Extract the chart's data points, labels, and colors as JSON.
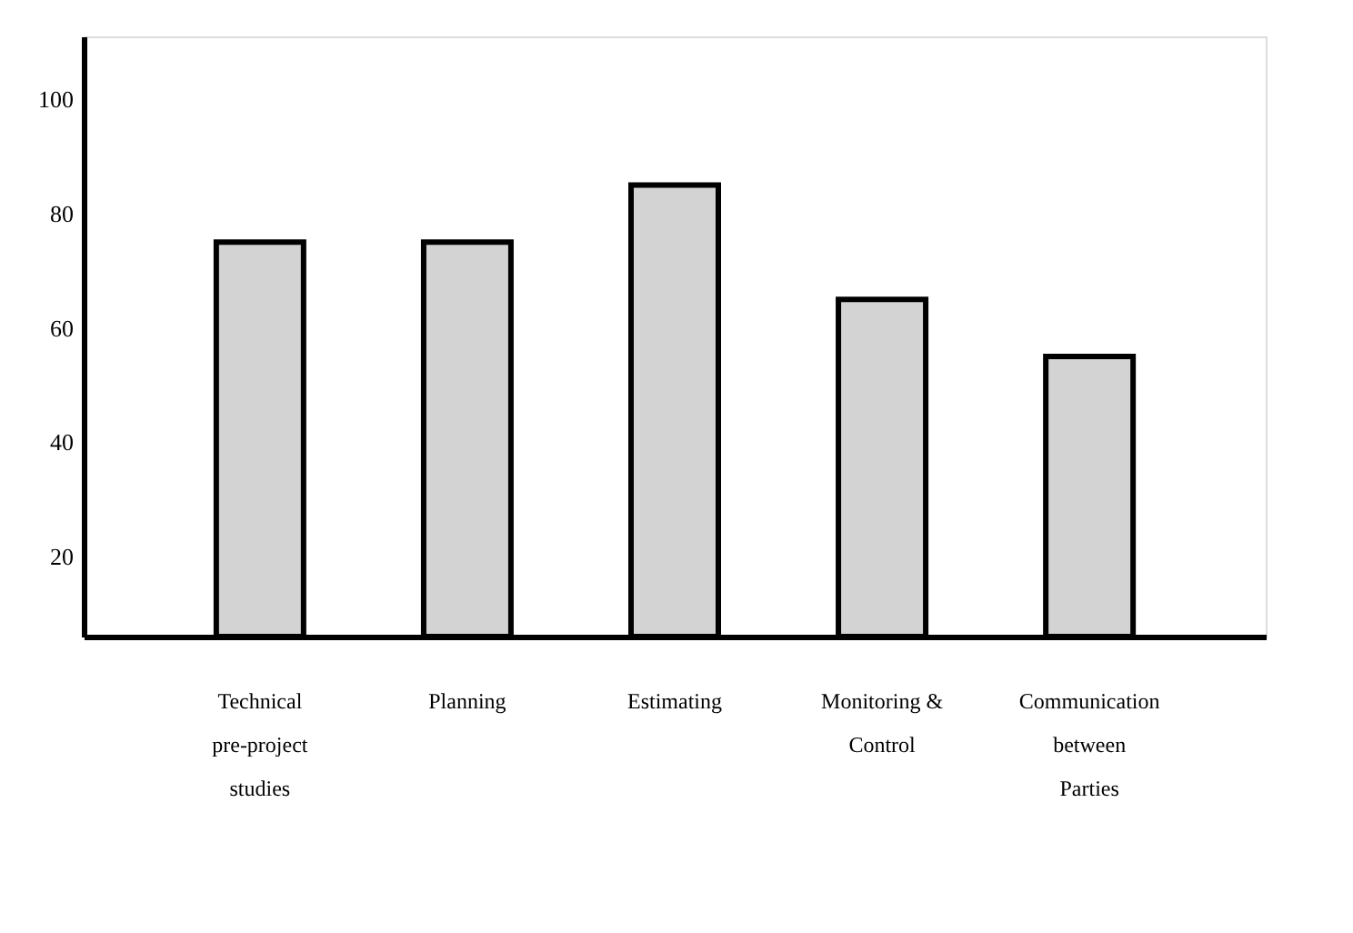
{
  "chart_data": {
    "type": "bar",
    "categories": [
      "Technical\npre-project\nstudies",
      "Planning",
      "Estimating",
      "Monitoring &\nControl",
      "Communication\nbetween\nParties"
    ],
    "values": [
      75,
      75,
      85,
      65,
      55
    ],
    "color": "#d3d3d3",
    "ylim": [
      6,
      111
    ],
    "yticks": [
      20,
      40,
      60,
      80,
      100
    ],
    "grid": false
  }
}
